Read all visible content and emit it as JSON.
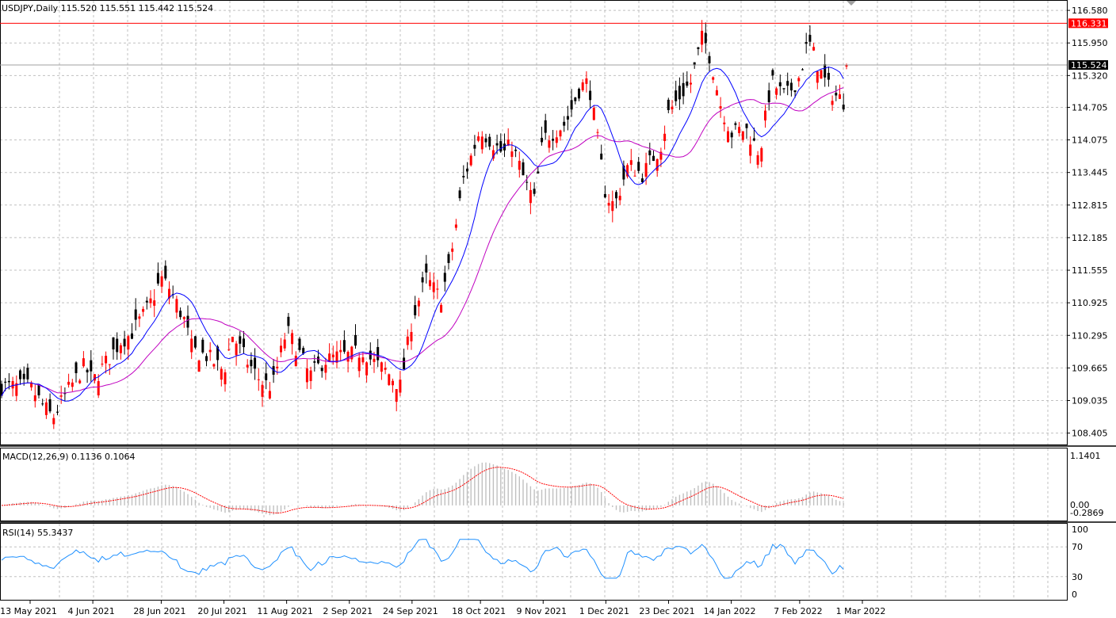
{
  "chart_data": [
    {
      "type": "candlestick",
      "title": "USDJPY,Daily  115.520 115.551 115.442 115.524",
      "symbol": "USDJPY",
      "timeframe": "Daily",
      "ohlc_last": {
        "open": 115.52,
        "high": 115.551,
        "low": 115.442,
        "close": 115.524
      },
      "ylim": [
        108.2,
        116.75
      ],
      "y_ticks": [
        "116.580",
        "115.950",
        "115.320",
        "114.705",
        "114.075",
        "113.445",
        "112.815",
        "112.185",
        "111.555",
        "110.925",
        "110.295",
        "109.665",
        "109.035",
        "108.405"
      ],
      "x_ticks": [
        "13 May 2021",
        "4 Jun 2021",
        "28 Jun 2021",
        "20 Jul 2021",
        "11 Aug 2021",
        "2 Sep 2021",
        "24 Sep 2021",
        "18 Oct 2021",
        "9 Nov 2021",
        "1 Dec 2021",
        "23 Dec 2021",
        "14 Jan 2022",
        "7 Feb 2022",
        "1 Mar 2022"
      ],
      "horizontal_line": {
        "value": 116.331,
        "label": "116.331",
        "color": "#ff0000"
      },
      "bid_line": {
        "value": 115.524,
        "label": "115.524"
      },
      "close_path": [
        [
          "13 May 2021",
          109.3
        ],
        [
          "18 May 2021",
          108.9
        ],
        [
          "21 May 2021",
          108.7
        ],
        [
          "26 May 2021",
          109.2
        ],
        [
          "1 Jun 2021",
          109.7
        ],
        [
          "4 Jun 2021",
          109.4
        ],
        [
          "9 Jun 2021",
          109.8
        ],
        [
          "14 Jun 2021",
          110.2
        ],
        [
          "17 Jun 2021",
          110.3
        ],
        [
          "22 Jun 2021",
          110.7
        ],
        [
          "25 Jun 2021",
          111.0
        ],
        [
          "28 Jun 2021",
          111.4
        ],
        [
          "1 Jul 2021",
          111.2
        ],
        [
          "6 Jul 2021",
          110.6
        ],
        [
          "9 Jul 2021",
          110.0
        ],
        [
          "14 Jul 2021",
          109.9
        ],
        [
          "20 Jul 2021",
          109.6
        ],
        [
          "23 Jul 2021",
          110.3
        ],
        [
          "28 Jul 2021",
          109.8
        ],
        [
          "2 Aug 2021",
          109.4
        ],
        [
          "6 Aug 2021",
          109.3
        ],
        [
          "11 Aug 2021",
          110.4
        ],
        [
          "16 Aug 2021",
          109.9
        ],
        [
          "19 Aug 2021",
          109.5
        ],
        [
          "24 Aug 2021",
          109.8
        ],
        [
          "30 Aug 2021",
          109.9
        ],
        [
          "2 Sep 2021",
          109.9
        ],
        [
          "7 Sep 2021",
          110.0
        ],
        [
          "10 Sep 2021",
          109.8
        ],
        [
          "15 Sep 2021",
          109.6
        ],
        [
          "20 Sep 2021",
          109.3
        ],
        [
          "24 Sep 2021",
          110.6
        ],
        [
          "29 Sep 2021",
          111.4
        ],
        [
          "4 Oct 2021",
          111.0
        ],
        [
          "7 Oct 2021",
          111.6
        ],
        [
          "12 Oct 2021",
          113.3
        ],
        [
          "18 Oct 2021",
          114.3
        ],
        [
          "21 Oct 2021",
          114.1
        ],
        [
          "26 Oct 2021",
          113.8
        ],
        [
          "29 Oct 2021",
          114.0
        ],
        [
          "3 Nov 2021",
          113.2
        ],
        [
          "6 Nov 2021",
          112.9
        ],
        [
          "9 Nov 2021",
          114.1
        ],
        [
          "12 Nov 2021",
          114.2
        ],
        [
          "17 Nov 2021",
          114.4
        ],
        [
          "22 Nov 2021",
          115.1
        ],
        [
          "25 Nov 2021",
          115.2
        ],
        [
          "1 Dec 2021",
          113.0
        ],
        [
          "4 Dec 2021",
          112.8
        ],
        [
          "9 Dec 2021",
          113.6
        ],
        [
          "14 Dec 2021",
          113.4
        ],
        [
          "17 Dec 2021",
          113.7
        ],
        [
          "20 Dec 2021",
          113.9
        ],
        [
          "23 Dec 2021",
          114.6
        ],
        [
          "28 Dec 2021",
          115.0
        ],
        [
          "31 Dec 2021",
          115.2
        ],
        [
          "4 Jan 2022",
          116.1
        ],
        [
          "7 Jan 2022",
          115.6
        ],
        [
          "10 Jan 2022",
          114.8
        ],
        [
          "14 Jan 2022",
          114.2
        ],
        [
          "19 Jan 2022",
          114.3
        ],
        [
          "24 Jan 2022",
          113.8
        ],
        [
          "28 Jan 2022",
          115.2
        ],
        [
          "2 Feb 2022",
          114.9
        ],
        [
          "7 Feb 2022",
          115.3
        ],
        [
          "10 Feb 2022",
          116.0
        ],
        [
          "15 Feb 2022",
          115.3
        ],
        [
          "18 Feb 2022",
          115.0
        ],
        [
          "23 Feb 2022",
          114.8
        ],
        [
          "26 Feb 2022",
          115.5
        ],
        [
          "1 Mar 2022",
          115.1
        ],
        [
          "4 Mar 2022",
          115.524
        ]
      ]
    },
    {
      "type": "line",
      "title": "MACD(12,26,9) 0.1136 0.1064",
      "name": "MACD(12,26,9)",
      "values_last": [
        "0.1136",
        "0.1064"
      ],
      "y_ticks": [
        "1.1401",
        "0.00",
        "-0.2869"
      ],
      "ylim": [
        -0.2869,
        1.1401
      ]
    },
    {
      "type": "line",
      "title": "RSI(14) 55.3437",
      "name": "RSI(14)",
      "value_last": "55.3437",
      "y_ticks": [
        "100",
        "70",
        "30",
        "0"
      ],
      "ylim": [
        0,
        100
      ]
    }
  ],
  "colors": {
    "bull": "#ff0000",
    "bear": "#000000",
    "ma_fast": "#0000ff",
    "ma_slow": "#c000c0",
    "macd_hist": "#c0c0c0",
    "macd_signal": "#ff0000",
    "rsi": "#1e90ff",
    "grid": "#c0c0c0"
  }
}
